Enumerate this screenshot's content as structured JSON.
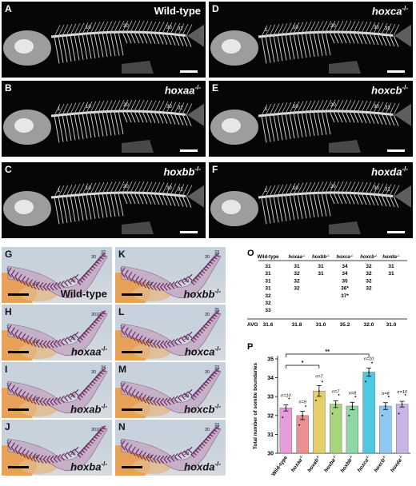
{
  "xray_panels": [
    {
      "label": "A",
      "genotype": "Wild-type",
      "is_wildtype": true,
      "marks": [
        "10",
        "20",
        "30",
        "32"
      ]
    },
    {
      "label": "B",
      "genotype": "hoxaa",
      "is_wildtype": false,
      "marks": [
        "1",
        "10",
        "20",
        "30",
        "32"
      ]
    },
    {
      "label": "C",
      "genotype": "hoxbb",
      "is_wildtype": false,
      "marks": [
        "1",
        "10",
        "20",
        "30",
        "31"
      ]
    },
    {
      "label": "D",
      "genotype": "hoxca",
      "is_wildtype": false,
      "marks": [
        "1",
        "10",
        "20",
        "30",
        "35"
      ]
    },
    {
      "label": "E",
      "genotype": "hoxcb",
      "is_wildtype": false,
      "marks": [
        "1",
        "10",
        "20",
        "30",
        "33"
      ]
    },
    {
      "label": "F",
      "genotype": "hoxda",
      "is_wildtype": false,
      "marks": [
        "1",
        "10",
        "20",
        "30",
        "31"
      ]
    }
  ],
  "embryo_panels": [
    {
      "label": "G",
      "genotype": "Wild-type",
      "is_wildtype": true,
      "marks": [
        "1",
        "10",
        "20",
        "30",
        "32"
      ]
    },
    {
      "label": "H",
      "genotype": "hoxaa",
      "is_wildtype": false,
      "marks": [
        "1",
        "10",
        "20",
        "3032"
      ]
    },
    {
      "label": "I",
      "genotype": "hoxab",
      "is_wildtype": false,
      "marks": [
        "1",
        "10",
        "20",
        "30",
        "34"
      ]
    },
    {
      "label": "J",
      "genotype": "hoxba",
      "is_wildtype": false,
      "marks": [
        "1",
        "10",
        "20",
        "3032"
      ]
    },
    {
      "label": "K",
      "genotype": "hoxbb",
      "is_wildtype": false,
      "marks": [
        "1",
        "10",
        "20",
        "30",
        "33"
      ]
    },
    {
      "label": "L",
      "genotype": "hoxca",
      "is_wildtype": false,
      "marks": [
        "1",
        "10",
        "20",
        "30",
        "35"
      ]
    },
    {
      "label": "M",
      "genotype": "hoxcb",
      "is_wildtype": false,
      "marks": [
        "1",
        "10",
        "20",
        "30",
        "33"
      ]
    },
    {
      "label": "N",
      "genotype": "hoxda",
      "is_wildtype": false,
      "marks": [
        "1",
        "10",
        "20",
        "30",
        "33"
      ]
    }
  ],
  "mutant_superscript": "-/-",
  "table": {
    "label": "O",
    "headers": [
      "Wild-type",
      "hoxaa",
      "hoxbb",
      "hoxca",
      "hoxcb",
      "hoxda"
    ],
    "columns": [
      [
        "31",
        "31",
        "31",
        "31",
        "32",
        "32",
        "33"
      ],
      [
        "31",
        "32",
        "32",
        "32"
      ],
      [
        "31",
        "31"
      ],
      [
        "34",
        "34",
        "35",
        "36*",
        "37*"
      ],
      [
        "32",
        "32",
        "32",
        "32"
      ],
      [
        "31",
        "31"
      ]
    ],
    "avg_label": "AVG",
    "avg_values": [
      "31.6",
      "31.8",
      "31.0",
      "35.2",
      "32.0",
      "31.0"
    ]
  },
  "chart_data": {
    "label": "P",
    "type": "bar",
    "ylabel": "Total number of somite boundaries",
    "ylim": [
      30,
      35
    ],
    "yticks": [
      "30",
      "31",
      "32",
      "33",
      "34",
      "35"
    ],
    "categories": [
      "Wild-type",
      "hoxaa",
      "hoxab",
      "hoxba",
      "hoxbb",
      "hoxca",
      "hoxcb",
      "hoxda"
    ],
    "values": [
      32.4,
      32.0,
      33.3,
      32.6,
      32.5,
      34.3,
      32.5,
      32.6
    ],
    "errors": [
      0.16,
      0.22,
      0.28,
      0.18,
      0.2,
      0.22,
      0.18,
      0.15
    ],
    "n_labels": [
      "n=10",
      "n=9",
      "n=7",
      "n=7",
      "n=8",
      "n=10",
      "n=8",
      "n=10"
    ],
    "colors": [
      "#e59ed8",
      "#ee8f8f",
      "#e6cf6a",
      "#a9d47f",
      "#8fd6a7",
      "#4fc8e0",
      "#8fc8f0",
      "#cbb3e5"
    ],
    "significance": [
      {
        "from": "Wild-type",
        "to": "hoxab",
        "mark": "*"
      },
      {
        "from": "Wild-type",
        "to": "hoxca",
        "mark": "**"
      }
    ]
  }
}
